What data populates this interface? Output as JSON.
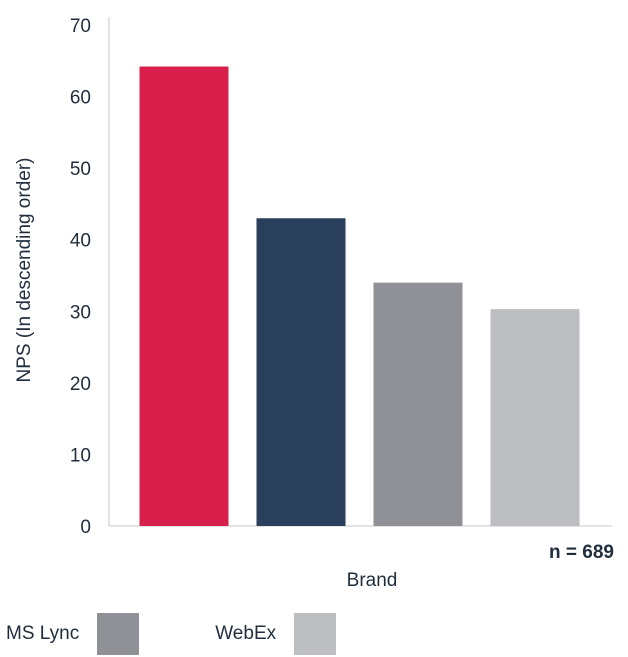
{
  "chart_data": {
    "type": "bar",
    "categories": [
      "",
      "",
      "",
      ""
    ],
    "values": [
      64.2,
      43.0,
      34.0,
      30.3
    ],
    "colors": [
      "#d81e4b",
      "#2a3f5c",
      "#8f9196",
      "#bdbec2"
    ],
    "title": "",
    "xlabel": "Brand",
    "ylabel": "NPS (In descending order)",
    "ylim": [
      0,
      70
    ],
    "yticks": [
      0,
      10,
      20,
      30,
      40,
      50,
      60,
      70
    ],
    "grid": false,
    "note": "n = 689",
    "legend": [
      {
        "name": "MS Lync",
        "color": "#8f9196"
      },
      {
        "name": "WebEx",
        "color": "#bdbec2"
      }
    ],
    "legend_position": "bottom-left"
  }
}
